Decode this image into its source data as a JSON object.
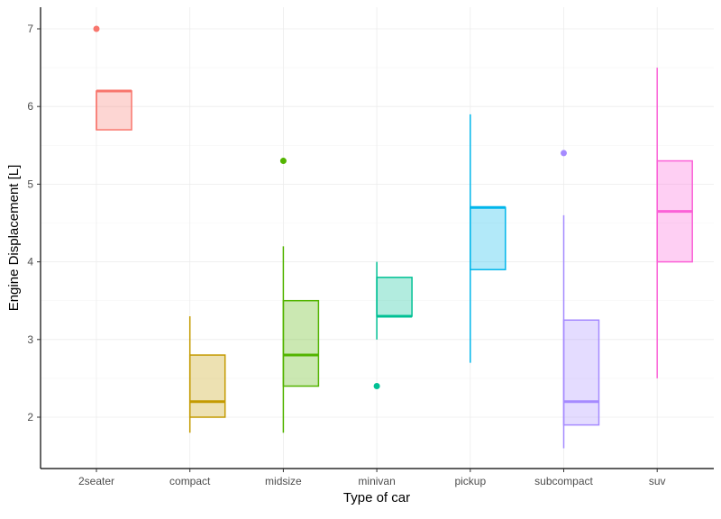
{
  "chart_data": {
    "type": "boxplot",
    "title": "",
    "xlabel": "Type of car",
    "ylabel": "Engine Displacement [L]",
    "ylim": [
      1.4,
      7.3
    ],
    "yticks": [
      2,
      3,
      4,
      5,
      6,
      7
    ],
    "grid": true,
    "legend": "none",
    "categories": [
      "2seater",
      "compact",
      "midsize",
      "minivan",
      "pickup",
      "subcompact",
      "suv"
    ],
    "colors": [
      "#F8766D",
      "#C49A00",
      "#53B400",
      "#00C094",
      "#00B6EB",
      "#A58AFF",
      "#FB61D7"
    ],
    "boxes": [
      {
        "category": "2seater",
        "min": 5.7,
        "q1": 5.7,
        "median": 6.2,
        "q3": 6.2,
        "max": 6.2,
        "outliers": [
          7.0
        ]
      },
      {
        "category": "compact",
        "min": 1.8,
        "q1": 2.0,
        "median": 2.2,
        "q3": 2.8,
        "max": 3.3,
        "outliers": []
      },
      {
        "category": "midsize",
        "min": 1.8,
        "q1": 2.4,
        "median": 2.8,
        "q3": 3.5,
        "max": 4.2,
        "outliers": [
          5.3
        ]
      },
      {
        "category": "minivan",
        "min": 3.0,
        "q1": 3.3,
        "median": 3.3,
        "q3": 3.8,
        "max": 4.0,
        "outliers": [
          2.4
        ]
      },
      {
        "category": "pickup",
        "min": 2.7,
        "q1": 3.9,
        "median": 4.7,
        "q3": 4.7,
        "max": 5.9,
        "outliers": []
      },
      {
        "category": "subcompact",
        "min": 1.6,
        "q1": 1.9,
        "median": 2.2,
        "q3": 3.25,
        "max": 4.6,
        "outliers": [
          5.4
        ]
      },
      {
        "category": "suv",
        "min": 2.5,
        "q1": 4.0,
        "median": 4.65,
        "q3": 5.3,
        "max": 6.5,
        "outliers": []
      }
    ]
  }
}
